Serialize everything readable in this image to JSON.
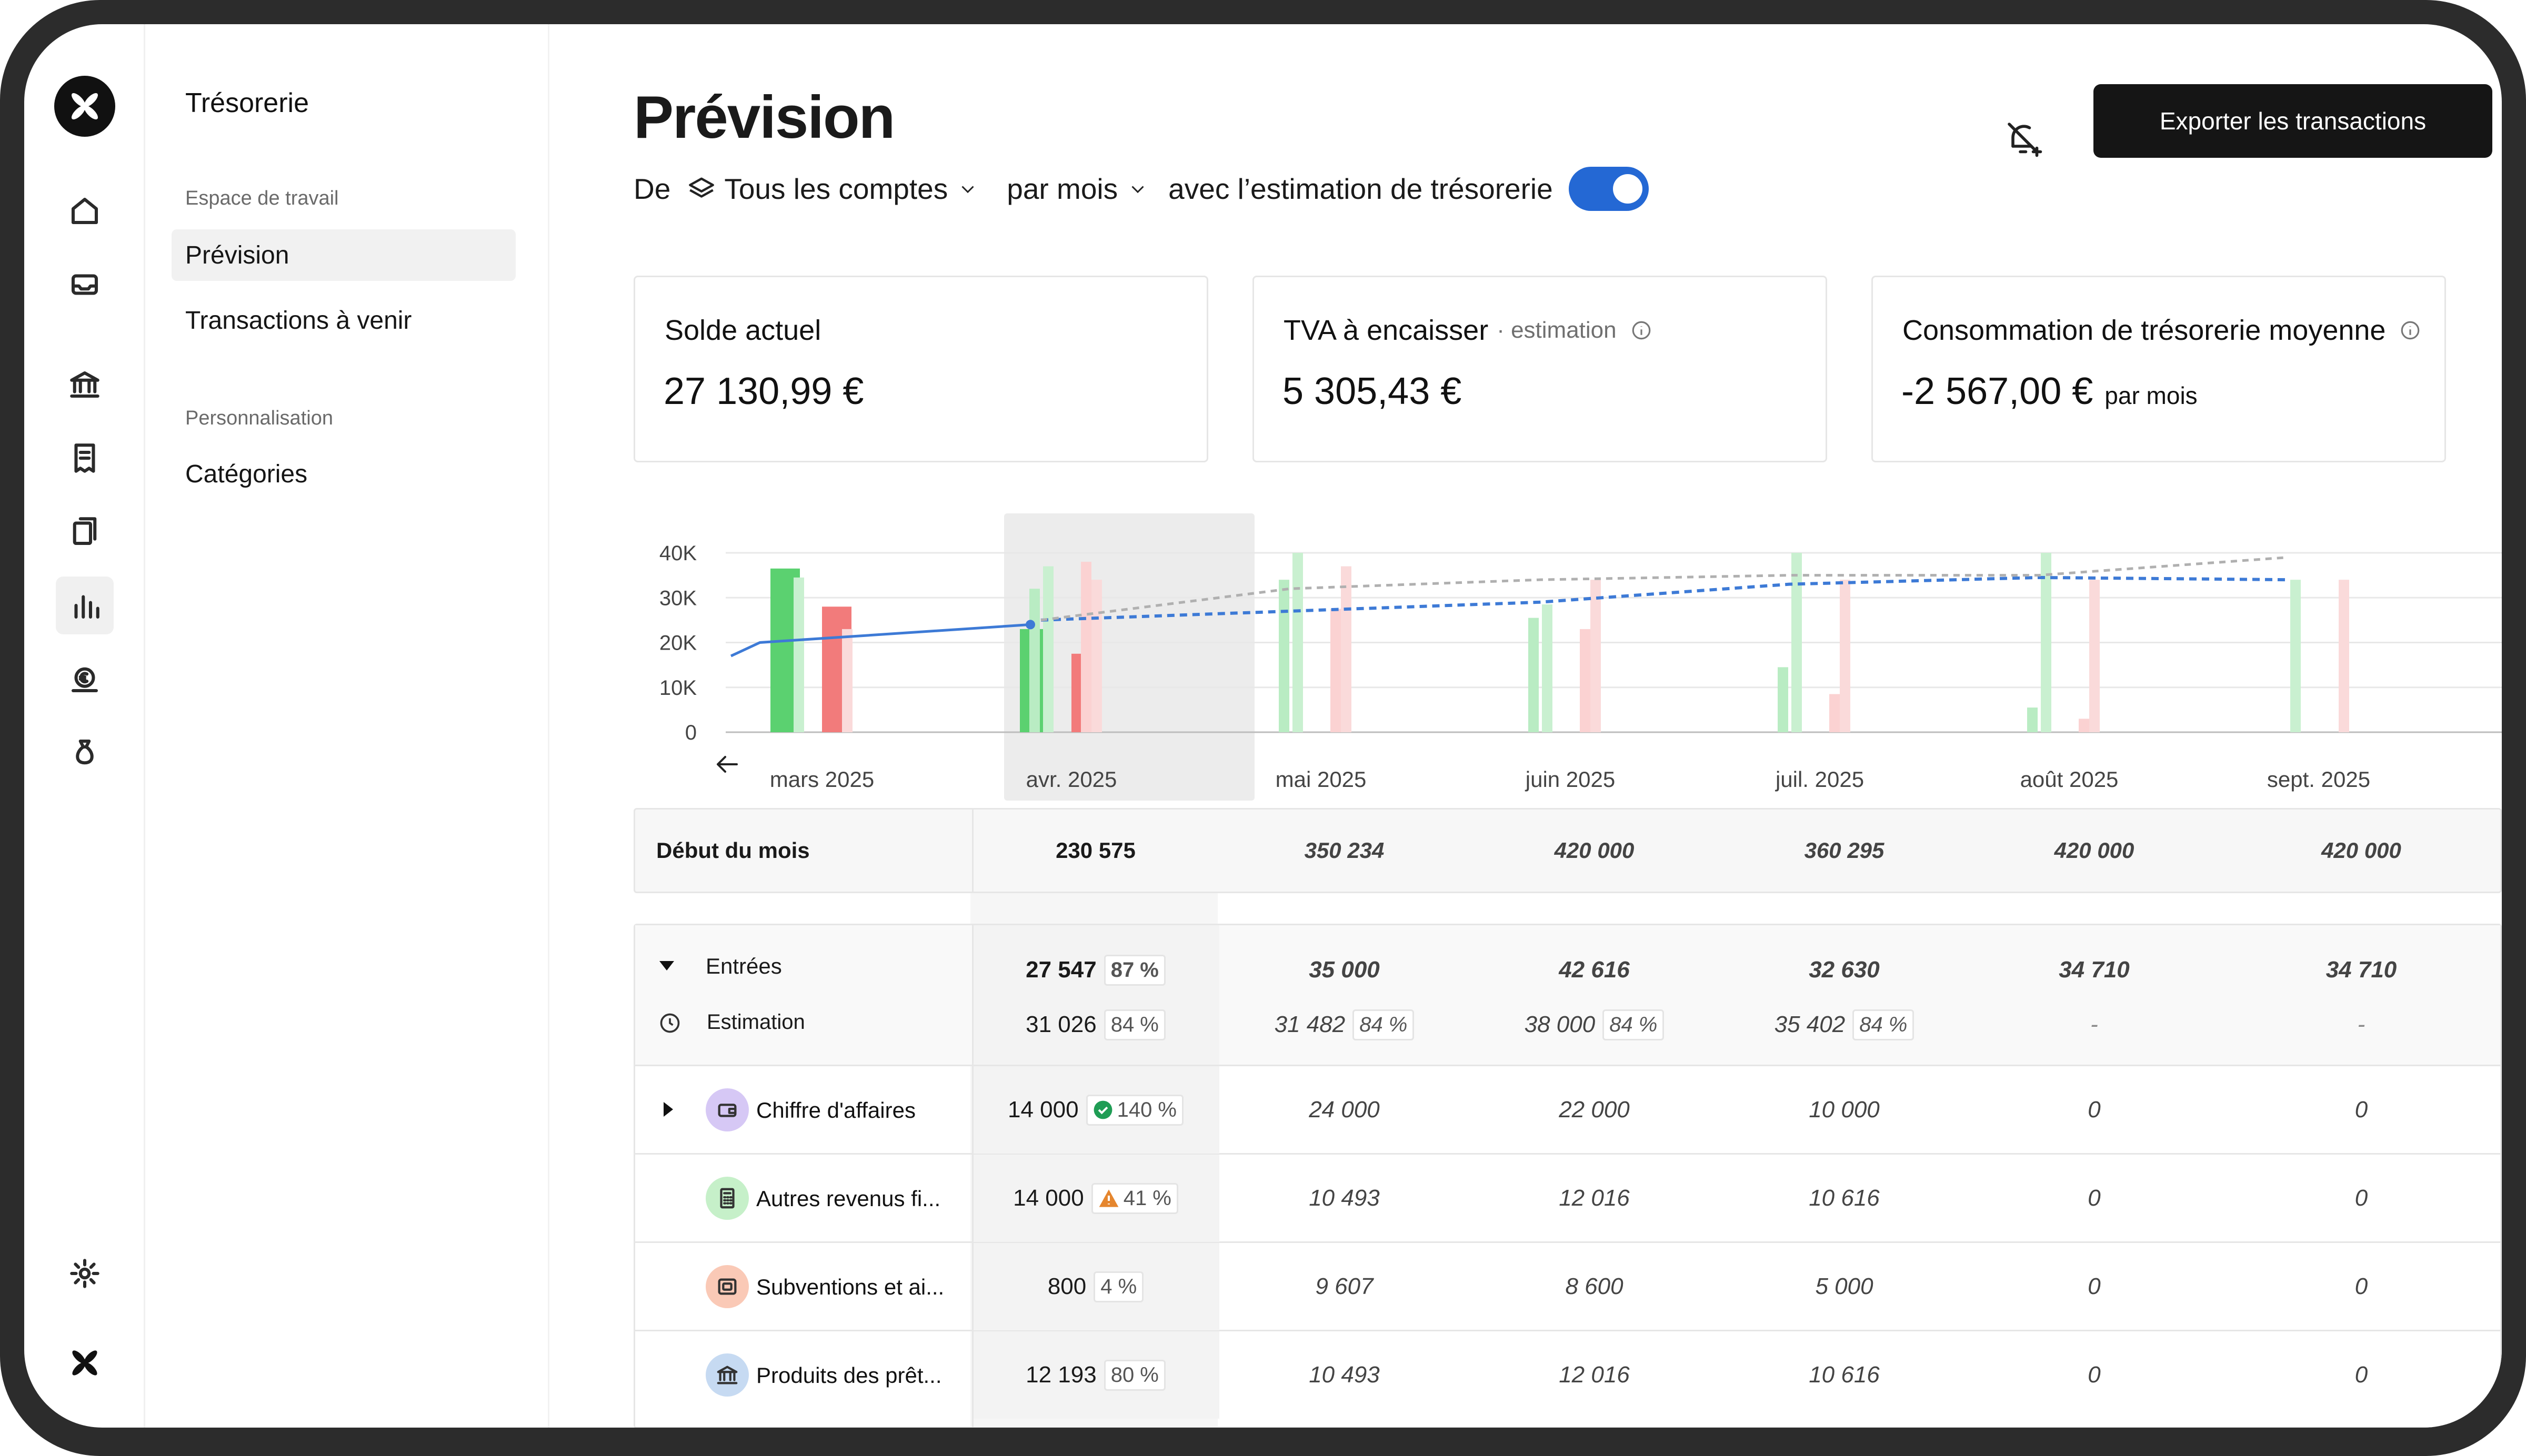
{
  "sidebar": {
    "title": "Trésorerie",
    "section_workspace": "Espace de travail",
    "item_forecast": "Prévision",
    "item_upcoming": "Transactions à venir",
    "section_custom": "Personnalisation",
    "item_categories": "Catégories"
  },
  "header": {
    "title": "Prévision",
    "filter_from": "De",
    "filter_accounts": "Tous les comptes",
    "filter_period": "par mois",
    "filter_estimation": "avec l’estimation de trésorerie",
    "estimation_enabled": true,
    "export_label": "Exporter les transactions"
  },
  "cards": [
    {
      "label": "Solde actuel",
      "sub": "",
      "value": "27 130,99 €",
      "unit": ""
    },
    {
      "label": "TVA à encaisser",
      "sub": "· estimation",
      "value": "5 305,43 €",
      "unit": ""
    },
    {
      "label": "Consommation de trésorerie moyenne",
      "sub": "",
      "value": "-2 567,00 €",
      "unit": "par mois"
    }
  ],
  "chart_data": {
    "type": "bar",
    "categories": [
      "mars 2025",
      "avr. 2025",
      "mai 2025",
      "juin 2025",
      "juil. 2025",
      "août 2025",
      "sept. 2025"
    ],
    "y_ticks": [
      "40K",
      "30K",
      "20K",
      "10K",
      "0"
    ],
    "ylim": [
      0,
      40000
    ],
    "highlighted_category": "avr. 2025",
    "series": [
      {
        "color": "#5bd170",
        "values": [
          36500,
          23000,
          0,
          0,
          0,
          0,
          0
        ]
      },
      {
        "color": "#b9ecc3",
        "values": [
          0,
          32000,
          34000,
          25500,
          14500,
          5500,
          0
        ]
      },
      {
        "color": "#c9f0d0",
        "values": [
          34500,
          37000,
          40000,
          28500,
          40000,
          40000,
          34000
        ]
      },
      {
        "color": "#f27b7b",
        "values": [
          28000,
          17500,
          0,
          0,
          0,
          0,
          0
        ]
      },
      {
        "color": "#fbd2d2",
        "values": [
          0,
          38000,
          27500,
          23000,
          8500,
          3000,
          0
        ]
      },
      {
        "color": "#fadada",
        "values": [
          23000,
          34000,
          37000,
          34000,
          34000,
          34000,
          34000
        ]
      }
    ],
    "line": {
      "color": "#3d7ad6",
      "values": [
        20000,
        25000,
        27000,
        29000,
        33000,
        34500,
        34000
      ]
    },
    "line_estimate": {
      "color": "#b0b0b0",
      "values": [
        20000,
        25000,
        32000,
        34000,
        35000,
        35000,
        39000
      ]
    }
  },
  "table": {
    "columns": [
      "avr. 2025",
      "mai 2025",
      "juin 2025",
      "juil. 2025",
      "août 2025",
      "sept. 2025"
    ],
    "start_label": "Début du mois",
    "start_values": [
      "230 575",
      "350 234",
      "420 000",
      "360 295",
      "420 000",
      "420 000"
    ],
    "inflow_label": "Entrées",
    "inflow_values": [
      "27 547",
      "35 000",
      "42 616",
      "32 630",
      "34 710",
      "34 710"
    ],
    "inflow_pcts": [
      "87 %",
      "",
      "",
      "",
      "",
      ""
    ],
    "estimate_label": "Estimation",
    "estimate_values": [
      "31 026",
      "31 482",
      "38 000",
      "35 402",
      "-",
      "-"
    ],
    "estimate_pcts": [
      "84 %",
      "84 %",
      "84 %",
      "84 %",
      "",
      ""
    ],
    "categories": [
      {
        "label": "Chiffre d'affaires",
        "color": "#d6c8f5",
        "icon": "wallet-icon",
        "status": "check",
        "values": [
          "14 000",
          "24 000",
          "22 000",
          "10 000",
          "0",
          "0"
        ],
        "pct": "140 %"
      },
      {
        "label": "Autres revenus fi...",
        "color": "#c6f0c9",
        "icon": "calculator-icon",
        "status": "warning",
        "values": [
          "14 000",
          "10 493",
          "12 016",
          "10 616",
          "0",
          "0"
        ],
        "pct": "41 %"
      },
      {
        "label": "Subventions et ai...",
        "color": "#fac9b6",
        "icon": "safe-icon",
        "status": "",
        "values": [
          "800",
          "9 607",
          "8 600",
          "5 000",
          "0",
          "0"
        ],
        "pct": "4 %"
      },
      {
        "label": "Produits des prêt...",
        "color": "#c6daf2",
        "icon": "bank-icon",
        "status": "",
        "values": [
          "12 193",
          "10 493",
          "12 016",
          "10 616",
          "0",
          "0"
        ],
        "pct": "80 %"
      }
    ]
  }
}
